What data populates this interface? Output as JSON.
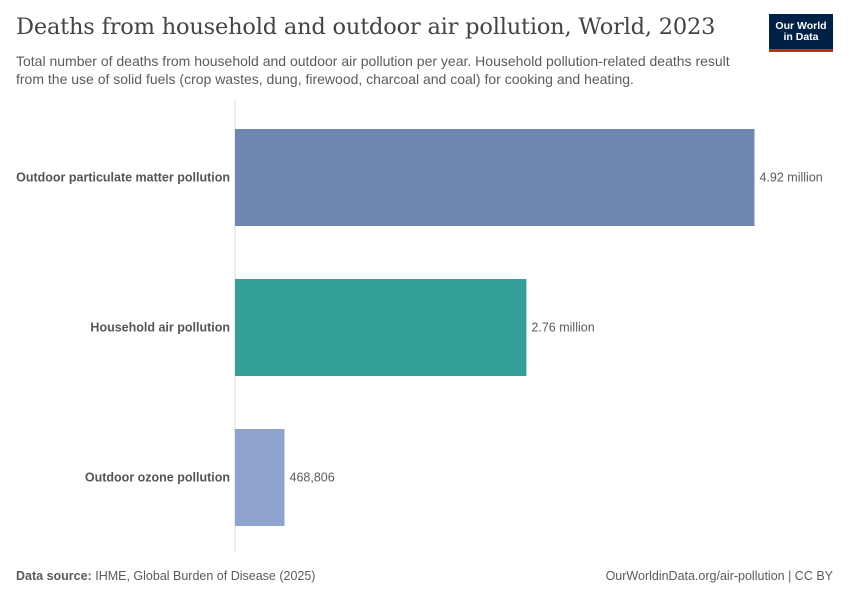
{
  "header": {
    "title": "Deaths from household and outdoor air pollution, World, 2023",
    "subtitle": "Total number of deaths from household and outdoor air pollution per year. Household pollution-related deaths result from the use of solid fuels (crop wastes, dung, firewood, charcoal and coal) for cooking and heating."
  },
  "logo": {
    "line1": "Our World",
    "line2": "in Data",
    "background": "#002147",
    "accent": "#ce261e"
  },
  "chart_data": {
    "type": "bar",
    "orientation": "horizontal",
    "categories": [
      "Outdoor particulate matter pollution",
      "Household air pollution",
      "Outdoor ozone pollution"
    ],
    "values": [
      4920000,
      2760000,
      468806
    ],
    "value_labels": [
      "4.92 million",
      "2.76 million",
      "468,806"
    ],
    "colors": [
      "#6d87b1",
      "#349f97",
      "#8ea4cf"
    ],
    "title": "Deaths from household and outdoor air pollution, World, 2023",
    "xlim": [
      0,
      4920000
    ]
  },
  "footer": {
    "source_label": "Data source:",
    "source_text": "IHME, Global Burden of Disease (2025)",
    "url_text": "OurWorldinData.org/air-pollution | CC BY"
  }
}
